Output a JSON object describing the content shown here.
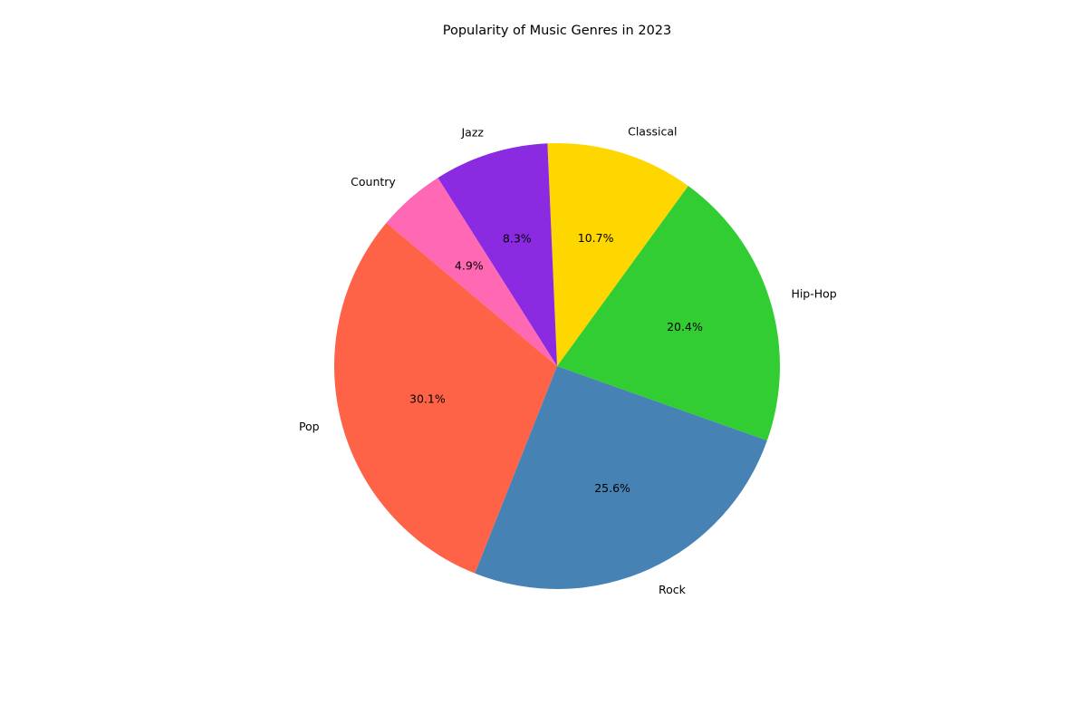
{
  "chart_data": {
    "type": "pie",
    "title": "Popularity of Music Genres in 2023",
    "start_angle_deg": 140,
    "direction": "counterclockwise",
    "autopct_format": "{:.1f}%",
    "slices": [
      {
        "label": "Pop",
        "value": 30.1,
        "color": "#FF6347"
      },
      {
        "label": "Rock",
        "value": 25.6,
        "color": "#4682B4"
      },
      {
        "label": "Hip-Hop",
        "value": 20.4,
        "color": "#32CD32"
      },
      {
        "label": "Classical",
        "value": 10.7,
        "color": "#FFD700"
      },
      {
        "label": "Jazz",
        "value": 8.3,
        "color": "#8A2BE2"
      },
      {
        "label": "Country",
        "value": 4.9,
        "color": "#FF69B4"
      }
    ]
  }
}
